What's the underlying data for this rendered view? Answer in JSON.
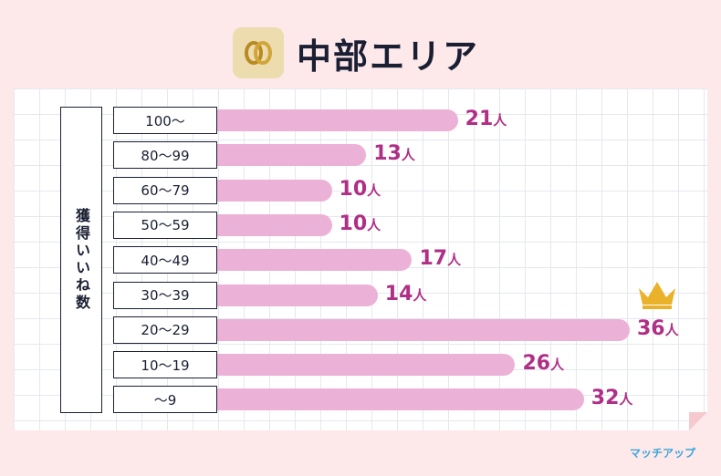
{
  "header": {
    "title": "中部エリア",
    "logo_icon": "gold-rings-icon"
  },
  "brand": "マッチアップ",
  "chart_data": {
    "type": "bar",
    "orientation": "horizontal",
    "title": "中部エリア",
    "ylabel": "獲得いいね数",
    "unit": "人",
    "categories": [
      "100〜",
      "80〜99",
      "60〜79",
      "50〜59",
      "40〜49",
      "30〜39",
      "20〜29",
      "10〜19",
      "〜9"
    ],
    "values": [
      21,
      13,
      10,
      10,
      17,
      14,
      36,
      26,
      32
    ],
    "xlim": [
      0,
      36
    ],
    "highlight": "20〜29",
    "bar_color": "#ecb1d7",
    "label_color": "#b02f86"
  }
}
